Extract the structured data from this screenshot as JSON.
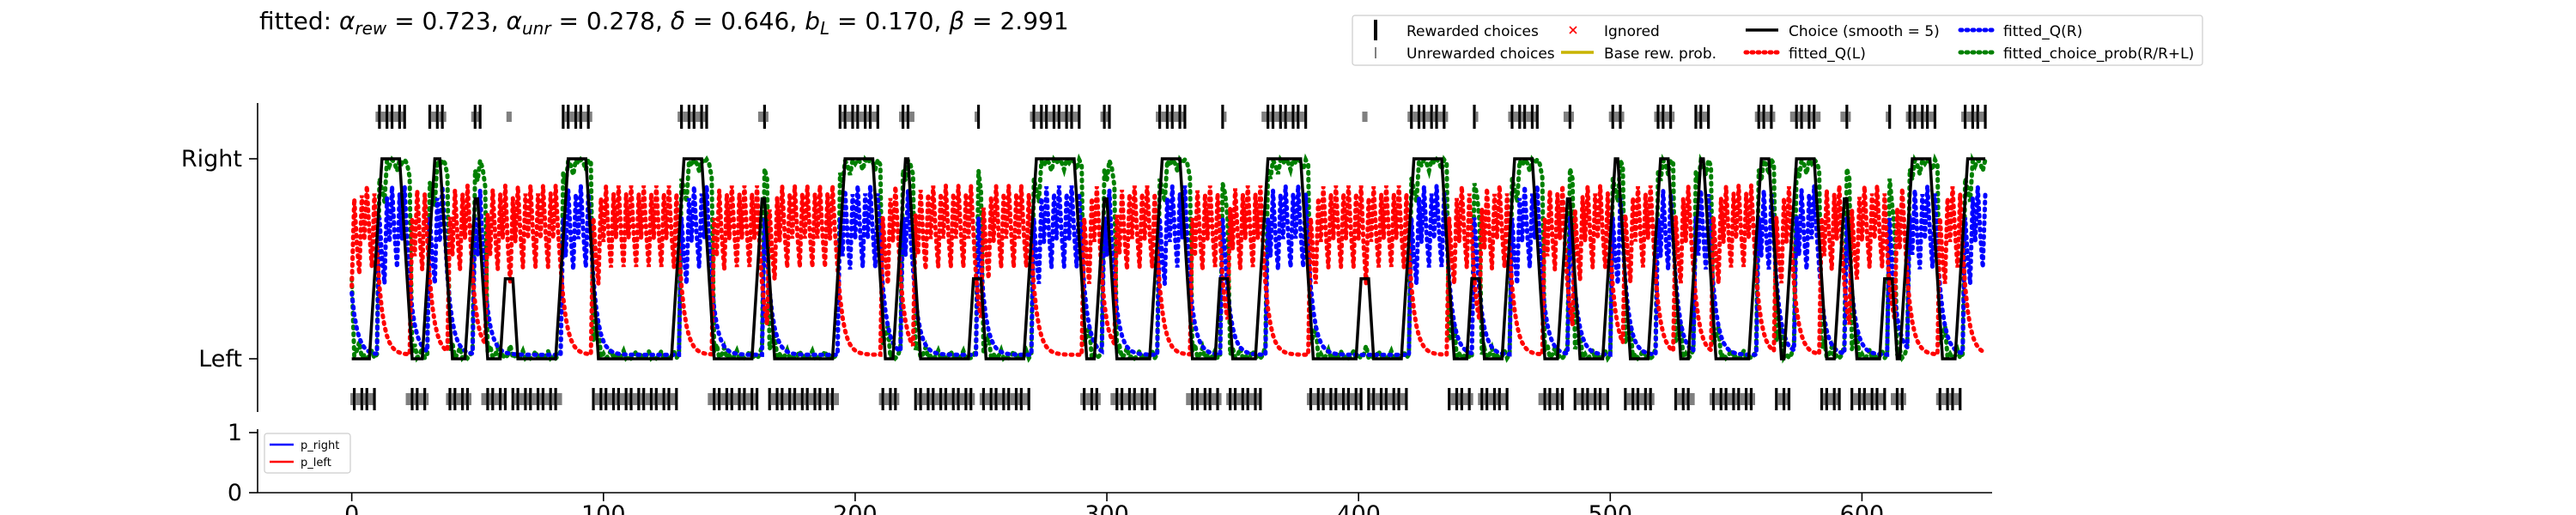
{
  "chart_data": {
    "type": "line",
    "title_parts": [
      {
        "t": "fitted: ",
        "s": ""
      },
      {
        "t": "α",
        "s": "i"
      },
      {
        "t": "rew",
        "s": "sub"
      },
      {
        "t": " = 0.723, ",
        "s": ""
      },
      {
        "t": "α",
        "s": "i"
      },
      {
        "t": "unr",
        "s": "sub"
      },
      {
        "t": " = 0.278, ",
        "s": ""
      },
      {
        "t": "δ",
        "s": "i"
      },
      {
        "t": " = 0.646, ",
        "s": ""
      },
      {
        "t": "b",
        "s": "i"
      },
      {
        "t": "L",
        "s": "sub"
      },
      {
        "t": " = 0.170, ",
        "s": ""
      },
      {
        "t": "β",
        "s": "i"
      },
      {
        "t": " = 2.991",
        "s": ""
      }
    ],
    "xlim": [
      -5,
      650
    ],
    "xticks": [
      0,
      100,
      200,
      300,
      400,
      500,
      600
    ],
    "xtick_labels": [
      "0",
      "100",
      "200",
      "300",
      "400",
      "500",
      "600"
    ],
    "main_ylabels": [
      "Right",
      "Left"
    ],
    "bottom_ylim": [
      0,
      1
    ],
    "bottom_yticks": [
      "1",
      "0"
    ],
    "legend_main": [
      {
        "label": "Rewarded choices",
        "kind": "tall-bar",
        "color": "#000000"
      },
      {
        "label": "Unrewarded choices",
        "kind": "short-bar",
        "color": "#808080"
      },
      {
        "label": "Ignored",
        "kind": "x",
        "color": "#ff0000"
      },
      {
        "label": "Base rew. prob.",
        "kind": "line",
        "color": "#c8b400"
      },
      {
        "label": "Choice (smooth = 5)",
        "kind": "line",
        "color": "#000000"
      },
      {
        "label": "fitted_Q(L)",
        "kind": "dotted",
        "color": "#ff0000"
      },
      {
        "label": "fitted_Q(R)",
        "kind": "dotted",
        "color": "#0000ff"
      },
      {
        "label": "fitted_choice_prob(R/R+L)",
        "kind": "dotted",
        "color": "#008000"
      }
    ],
    "legend_bottom": [
      {
        "label": "p_right",
        "color": "#0000ff"
      },
      {
        "label": "p_left",
        "color": "#ff0000"
      }
    ],
    "choice_blocks": [
      {
        "x": [
          0,
          8
        ],
        "side": "L"
      },
      {
        "x": [
          10,
          22
        ],
        "side": "R"
      },
      {
        "x": [
          24,
          30
        ],
        "side": "L"
      },
      {
        "x": [
          31,
          38
        ],
        "side": "R"
      },
      {
        "x": [
          40,
          46
        ],
        "side": "L"
      },
      {
        "x": [
          48,
          52
        ],
        "side": "R"
      },
      {
        "x": [
          54,
          60
        ],
        "side": "L"
      },
      {
        "x": [
          62,
          64
        ],
        "side": "R"
      },
      {
        "x": [
          66,
          82
        ],
        "side": "L"
      },
      {
        "x": [
          84,
          96
        ],
        "side": "R"
      },
      {
        "x": [
          98,
          128
        ],
        "side": "L"
      },
      {
        "x": [
          130,
          142
        ],
        "side": "R"
      },
      {
        "x": [
          144,
          160
        ],
        "side": "L"
      },
      {
        "x": [
          162,
          166
        ],
        "side": "R"
      },
      {
        "x": [
          168,
          192
        ],
        "side": "L"
      },
      {
        "x": [
          194,
          210
        ],
        "side": "R"
      },
      {
        "x": [
          212,
          216
        ],
        "side": "L"
      },
      {
        "x": [
          218,
          224
        ],
        "side": "R"
      },
      {
        "x": [
          226,
          246
        ],
        "side": "L"
      },
      {
        "x": [
          248,
          250
        ],
        "side": "R"
      },
      {
        "x": [
          252,
          268
        ],
        "side": "L"
      },
      {
        "x": [
          270,
          290
        ],
        "side": "R"
      },
      {
        "x": [
          292,
          296
        ],
        "side": "L"
      },
      {
        "x": [
          298,
          302
        ],
        "side": "R"
      },
      {
        "x": [
          304,
          318
        ],
        "side": "L"
      },
      {
        "x": [
          320,
          332
        ],
        "side": "R"
      },
      {
        "x": [
          334,
          344
        ],
        "side": "L"
      },
      {
        "x": [
          346,
          348
        ],
        "side": "R"
      },
      {
        "x": [
          350,
          360
        ],
        "side": "L"
      },
      {
        "x": [
          362,
          380
        ],
        "side": "R"
      },
      {
        "x": [
          382,
          400
        ],
        "side": "L"
      },
      {
        "x": [
          402,
          404
        ],
        "side": "R"
      },
      {
        "x": [
          406,
          418
        ],
        "side": "L"
      },
      {
        "x": [
          420,
          436
        ],
        "side": "R"
      },
      {
        "x": [
          438,
          444
        ],
        "side": "L"
      },
      {
        "x": [
          446,
          448
        ],
        "side": "R"
      },
      {
        "x": [
          450,
          458
        ],
        "side": "L"
      },
      {
        "x": [
          460,
          472
        ],
        "side": "R"
      },
      {
        "x": [
          474,
          480
        ],
        "side": "L"
      },
      {
        "x": [
          482,
          486
        ],
        "side": "R"
      },
      {
        "x": [
          488,
          498
        ],
        "side": "L"
      },
      {
        "x": [
          500,
          506
        ],
        "side": "R"
      },
      {
        "x": [
          508,
          516
        ],
        "side": "L"
      },
      {
        "x": [
          518,
          526
        ],
        "side": "R"
      },
      {
        "x": [
          528,
          532
        ],
        "side": "L"
      },
      {
        "x": [
          534,
          540
        ],
        "side": "R"
      },
      {
        "x": [
          542,
          556
        ],
        "side": "L"
      },
      {
        "x": [
          558,
          566
        ],
        "side": "R"
      },
      {
        "x": [
          568,
          570
        ],
        "side": "L"
      },
      {
        "x": [
          572,
          584
        ],
        "side": "R"
      },
      {
        "x": [
          586,
          590
        ],
        "side": "L"
      },
      {
        "x": [
          592,
          596
        ],
        "side": "R"
      },
      {
        "x": [
          598,
          608
        ],
        "side": "L"
      },
      {
        "x": [
          610,
          612
        ],
        "side": "R"
      },
      {
        "x": [
          614,
          616
        ],
        "side": "L"
      },
      {
        "x": [
          618,
          630
        ],
        "side": "R"
      },
      {
        "x": [
          632,
          638
        ],
        "side": "L"
      },
      {
        "x": [
          640,
          650
        ],
        "side": "R"
      }
    ],
    "series": [
      {
        "name": "Choice (smooth = 5)",
        "color": "#000000",
        "style": "solid"
      },
      {
        "name": "fitted_Q(L)",
        "color": "#ff0000",
        "style": "dotted"
      },
      {
        "name": "fitted_Q(R)",
        "color": "#0000ff",
        "style": "dotted"
      },
      {
        "name": "fitted_choice_prob(R/R+L)",
        "color": "#008000",
        "style": "dotted"
      }
    ]
  }
}
